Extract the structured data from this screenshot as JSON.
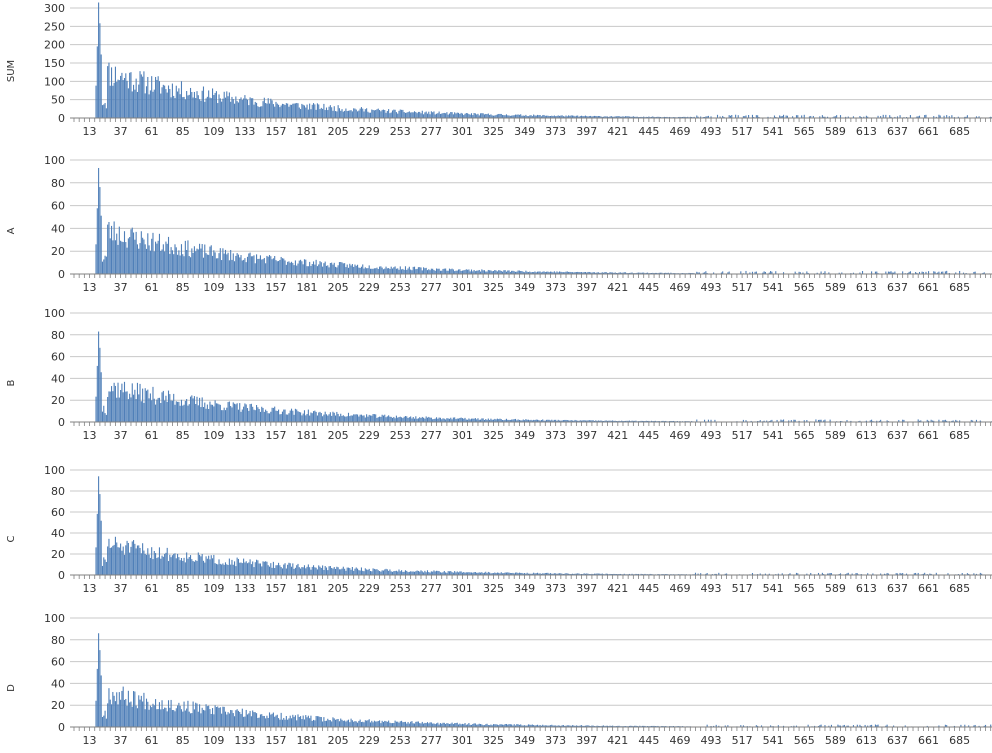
{
  "panels": [
    {
      "ylabel": "SUM",
      "ylim": [
        0,
        300
      ],
      "yticks": [
        0,
        50,
        100,
        150,
        200,
        250,
        300
      ],
      "peak": 315,
      "plateau": 150,
      "seed": 11
    },
    {
      "ylabel": "A",
      "ylim": [
        0,
        100
      ],
      "yticks": [
        0,
        20,
        40,
        60,
        80,
        100
      ],
      "peak": 93,
      "plateau": 46,
      "seed": 23
    },
    {
      "ylabel": "B",
      "ylim": [
        0,
        100
      ],
      "yticks": [
        0,
        20,
        40,
        60,
        80,
        100
      ],
      "peak": 83,
      "plateau": 40,
      "seed": 37
    },
    {
      "ylabel": "C",
      "ylim": [
        0,
        100
      ],
      "yticks": [
        0,
        20,
        40,
        60,
        80,
        100
      ],
      "peak": 94,
      "plateau": 36,
      "seed": 51
    },
    {
      "ylabel": "D",
      "ylim": [
        0,
        100
      ],
      "yticks": [
        0,
        20,
        40,
        60,
        80,
        100
      ],
      "peak": 86,
      "plateau": 38,
      "seed": 67
    }
  ],
  "x_tick_labels": [
    "13",
    "37",
    "61",
    "85",
    "109",
    "133",
    "157",
    "181",
    "205",
    "229",
    "253",
    "277",
    "301",
    "325",
    "349",
    "373",
    "397",
    "421",
    "445",
    "469",
    "493",
    "517",
    "541",
    "565",
    "589",
    "613",
    "637",
    "661",
    "685"
  ],
  "chart_data": [
    {
      "type": "bar",
      "title": "",
      "xlabel": "",
      "ylabel": "SUM",
      "x_range": [
        1,
        710
      ],
      "ylim": [
        0,
        300
      ],
      "grid": true,
      "series": [
        {
          "values_summary": "sharp peak near x≈20 (~315), second hump ~150 around x≈30–60, then decaying toward 0 by x≈500"
        }
      ]
    },
    {
      "type": "bar",
      "title": "",
      "xlabel": "",
      "ylabel": "A",
      "x_range": [
        1,
        710
      ],
      "ylim": [
        0,
        100
      ],
      "grid": true,
      "series": [
        {
          "values_summary": "peak ~93 near x≈20, plateau ~45 around x≈30, decaying toward 0"
        }
      ]
    },
    {
      "type": "bar",
      "title": "",
      "xlabel": "",
      "ylabel": "B",
      "x_range": [
        1,
        710
      ],
      "ylim": [
        0,
        100
      ],
      "grid": true,
      "series": [
        {
          "values_summary": "peak ~83 near x≈20, ~40 around x≈30–90, decaying toward 0"
        }
      ]
    },
    {
      "type": "bar",
      "title": "",
      "xlabel": "",
      "ylabel": "C",
      "x_range": [
        1,
        710
      ],
      "ylim": [
        0,
        100
      ],
      "grid": true,
      "series": [
        {
          "values_summary": "peak ~94 near x≈20, ~50 spike near x≈30, decaying toward 0"
        }
      ]
    },
    {
      "type": "bar",
      "title": "",
      "xlabel": "",
      "ylabel": "D",
      "x_range": [
        1,
        710
      ],
      "ylim": [
        0,
        100
      ],
      "grid": true,
      "series": [
        {
          "values_summary": "peak ~86 near x≈20, ~40 around x≈30–70, decaying toward 0"
        }
      ]
    }
  ],
  "colors": {
    "bar": "#4f7fb8",
    "grid": "#c8c8c8",
    "axis": "#808080"
  }
}
